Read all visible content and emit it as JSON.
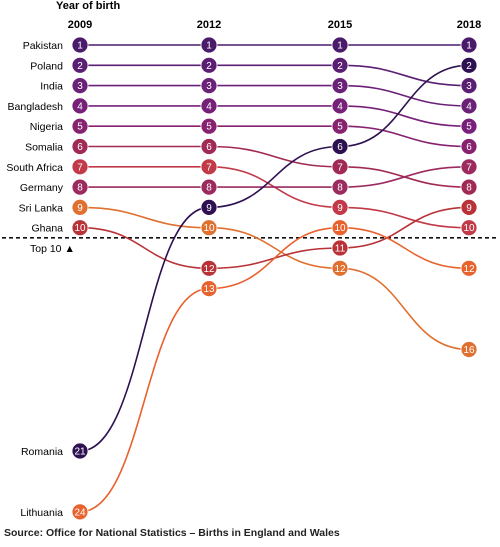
{
  "chart_data": {
    "type": "line",
    "subtype": "bump",
    "axis_title": "Year of birth",
    "x": [
      "2009",
      "2012",
      "2015",
      "2018"
    ],
    "y_direction": "rank (1 at top)",
    "threshold": {
      "after_rank": 10,
      "label": "Top 10 ▲",
      "style": "dashed"
    },
    "source": "Source: Office for National Statistics – Births in England and Wales",
    "series": [
      {
        "name": "Pakistan",
        "ranks": [
          1,
          1,
          1,
          1
        ],
        "color": "#4a1a6b"
      },
      {
        "name": "Poland",
        "ranks": [
          2,
          2,
          2,
          3
        ],
        "color": "#5a1f73"
      },
      {
        "name": "India",
        "ranks": [
          3,
          3,
          3,
          4
        ],
        "color": "#6a2178"
      },
      {
        "name": "Bangladesh",
        "ranks": [
          4,
          4,
          4,
          5
        ],
        "color": "#76207a"
      },
      {
        "name": "Nigeria",
        "ranks": [
          5,
          5,
          5,
          6
        ],
        "color": "#86226f"
      },
      {
        "name": "Somalia",
        "ranks": [
          6,
          6,
          7,
          8
        ],
        "color": "#a02a55"
      },
      {
        "name": "South Africa",
        "ranks": [
          7,
          7,
          9,
          10
        ],
        "color": "#c23a48"
      },
      {
        "name": "Germany",
        "ranks": [
          8,
          8,
          8,
          7
        ],
        "color": "#9c2a5e"
      },
      {
        "name": "Sri Lanka",
        "ranks": [
          9,
          10,
          12,
          16
        ],
        "color": "#e07030"
      },
      {
        "name": "Ghana",
        "ranks": [
          10,
          12,
          11,
          9
        ],
        "color": "#b83238"
      },
      {
        "name": "Romania",
        "ranks": [
          21,
          9,
          6,
          2
        ],
        "color": "#2d1151"
      },
      {
        "name": "Lithuania",
        "ranks": [
          24,
          13,
          10,
          12
        ],
        "color": "#e8622e"
      }
    ]
  }
}
